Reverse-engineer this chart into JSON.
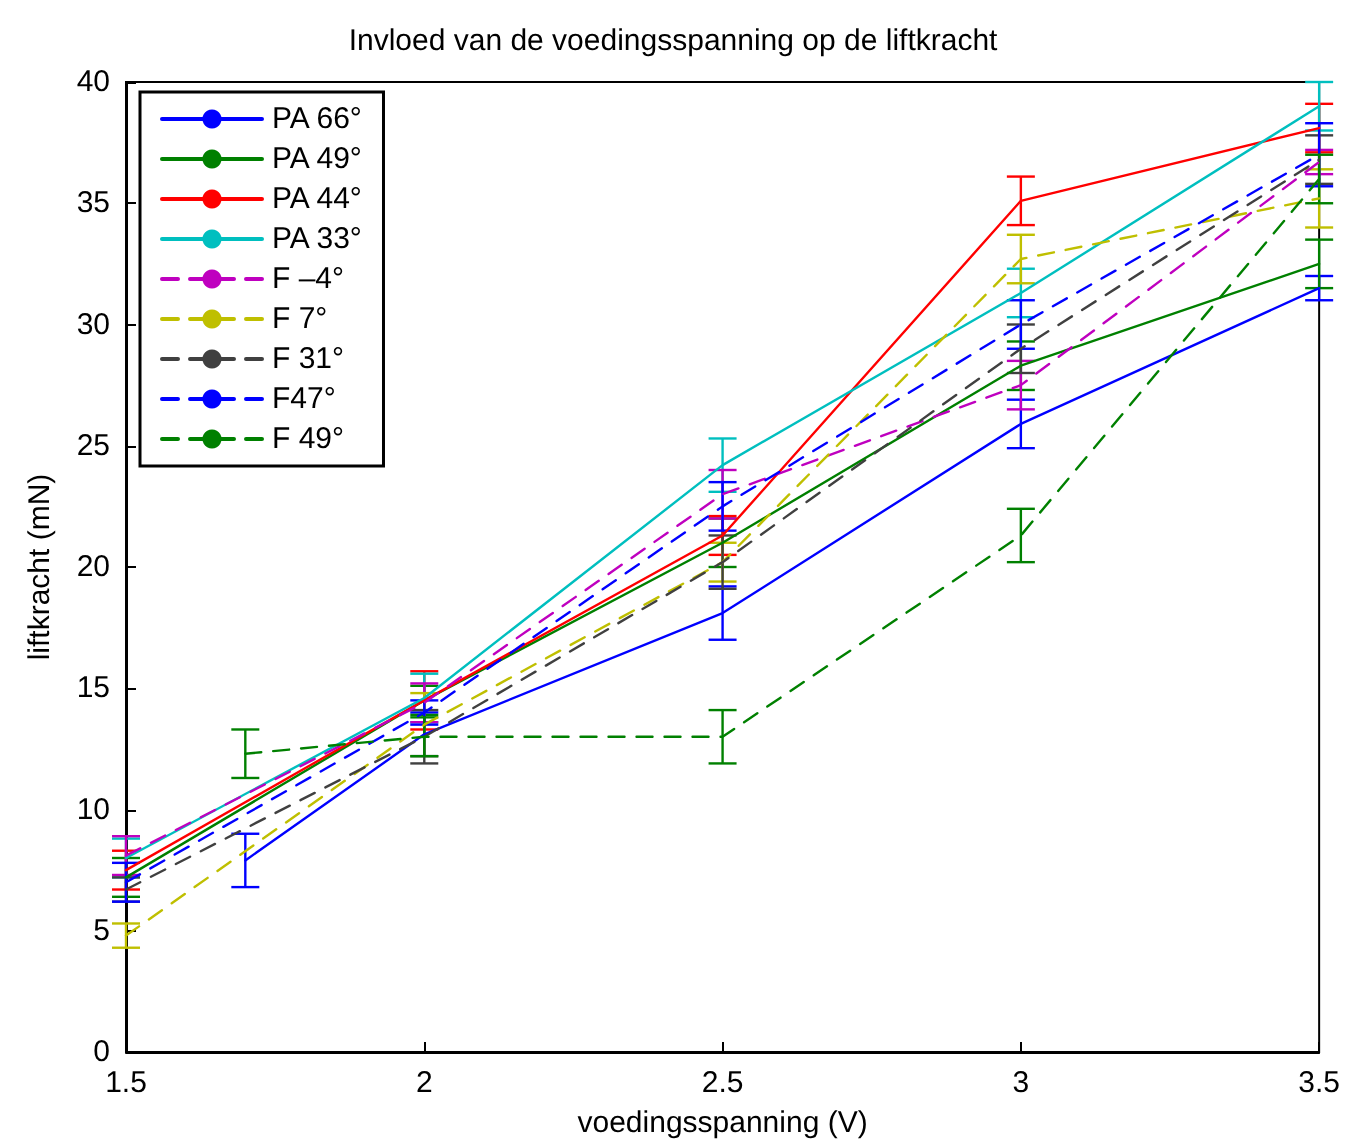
{
  "chart_data": {
    "type": "line",
    "title": "Invloed van de voedingsspanning op de liftkracht",
    "xlabel": "voedingsspanning (V)",
    "ylabel": "liftkracht (mN)",
    "x": [
      1.5,
      2,
      2.5,
      3,
      3.5
    ],
    "xlim": [
      1.5,
      3.5
    ],
    "xticks": [
      1.5,
      2,
      2.5,
      3,
      3.5
    ],
    "ylim": [
      0,
      40
    ],
    "yticks": [
      0,
      5,
      10,
      15,
      20,
      25,
      30,
      35,
      40
    ],
    "grid": false,
    "legend": "top left",
    "marker": "none",
    "series": [
      {
        "name": "PA 66°",
        "color": "#0000ff",
        "line_style": "solid",
        "x": [
          1.7,
          2,
          2.5,
          3,
          3.5
        ],
        "values": [
          7.9,
          13.1,
          18.1,
          25.9,
          31.5
        ],
        "errors": [
          1.1,
          0.9,
          1.1,
          1,
          0.5
        ]
      },
      {
        "name": "PA 49°",
        "color": "#008000",
        "line_style": "solid",
        "values": [
          7.2,
          14.5,
          21,
          28.3,
          32.5
        ],
        "errors": [
          0.8,
          0.6,
          1,
          1,
          1
        ]
      },
      {
        "name": "PA 44°",
        "color": "#ff0000",
        "line_style": "solid",
        "values": [
          7.5,
          14.5,
          21.3,
          35.1,
          38.1
        ],
        "errors": [
          0.8,
          1.2,
          0.8,
          1,
          1
        ]
      },
      {
        "name": "PA 33°",
        "color": "#00bfbf",
        "line_style": "solid",
        "values": [
          8,
          14.6,
          24.2,
          31.3,
          39
        ],
        "errors": [
          0.8,
          1,
          1.1,
          1,
          1
        ]
      },
      {
        "name": "F –4°",
        "color": "#bf00bf",
        "line_style": "dashed",
        "values": [
          8.1,
          14.4,
          23,
          27.5,
          36.7
        ],
        "errors": [
          0.8,
          0.8,
          1,
          1,
          0.5
        ]
      },
      {
        "name": "F 7°",
        "color": "#bfbf00",
        "line_style": "dashed",
        "values": [
          4.8,
          13.5,
          20.2,
          32.7,
          35.2
        ],
        "errors": [
          0.5,
          1.3,
          0.8,
          1,
          1.2
        ]
      },
      {
        "name": "F 31°",
        "color": "#404040",
        "line_style": "dashed",
        "values": [
          6.7,
          13,
          20.2,
          29,
          36.8
        ],
        "errors": [
          0.5,
          1.1,
          1.1,
          1,
          1
        ]
      },
      {
        "name": "F47°",
        "color": "#0000ff",
        "line_style": "dashed",
        "values": [
          7,
          14,
          22.5,
          30,
          37
        ],
        "errors": [
          0.8,
          0.5,
          1,
          1,
          1.3
        ]
      },
      {
        "name": "F 49°",
        "color": "#008000",
        "line_style": "dashed",
        "x": [
          1.7,
          2,
          2.5,
          3,
          3.5
        ],
        "values": [
          12.3,
          13,
          13,
          21.3,
          36
        ],
        "errors": [
          1,
          0.8,
          1.1,
          1.1,
          1
        ]
      }
    ]
  }
}
